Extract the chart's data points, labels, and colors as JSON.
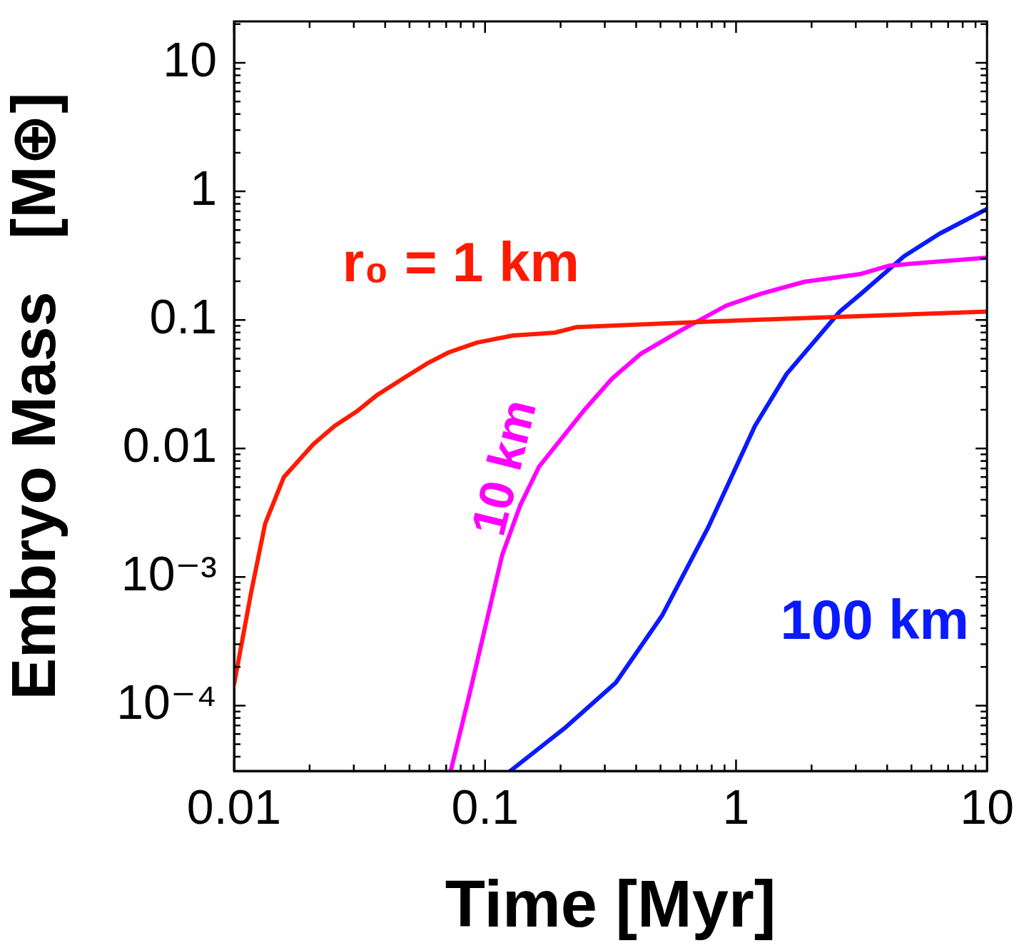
{
  "chart_data": {
    "type": "line",
    "xlabel": "Time [Myr]",
    "ylabel": "Embryo Mass   [M⊕]",
    "log": "xy",
    "legend": false,
    "xlim": [
      0.01,
      10
    ],
    "ylim": [
      3.1e-05,
      21
    ],
    "xticks": [
      {
        "value": 0.01,
        "label": "0.01"
      },
      {
        "value": 0.02,
        "label": null
      },
      {
        "value": 0.03,
        "label": null
      },
      {
        "value": 0.04,
        "label": null
      },
      {
        "value": 0.05,
        "label": null
      },
      {
        "value": 0.06,
        "label": null
      },
      {
        "value": 0.07,
        "label": null
      },
      {
        "value": 0.08,
        "label": null
      },
      {
        "value": 0.09,
        "label": null
      },
      {
        "value": 0.1,
        "label": "0.1"
      },
      {
        "value": 0.2,
        "label": null
      },
      {
        "value": 0.3,
        "label": null
      },
      {
        "value": 0.4,
        "label": null
      },
      {
        "value": 0.5,
        "label": null
      },
      {
        "value": 0.6,
        "label": null
      },
      {
        "value": 0.7,
        "label": null
      },
      {
        "value": 0.8,
        "label": null
      },
      {
        "value": 0.9,
        "label": null
      },
      {
        "value": 1,
        "label": "1"
      },
      {
        "value": 2,
        "label": null
      },
      {
        "value": 3,
        "label": null
      },
      {
        "value": 4,
        "label": null
      },
      {
        "value": 5,
        "label": null
      },
      {
        "value": 6,
        "label": null
      },
      {
        "value": 7,
        "label": null
      },
      {
        "value": 8,
        "label": null
      },
      {
        "value": 9,
        "label": null
      },
      {
        "value": 10,
        "label": "10"
      }
    ],
    "yticks": [
      {
        "value": 4e-05,
        "label": null
      },
      {
        "value": 5e-05,
        "label": null
      },
      {
        "value": 6e-05,
        "label": null
      },
      {
        "value": 7e-05,
        "label": null
      },
      {
        "value": 8e-05,
        "label": null
      },
      {
        "value": 9e-05,
        "label": null
      },
      {
        "value": 0.0001,
        "label": "10⁻⁴"
      },
      {
        "value": 0.0002,
        "label": null
      },
      {
        "value": 0.0003,
        "label": null
      },
      {
        "value": 0.0004,
        "label": null
      },
      {
        "value": 0.0005,
        "label": null
      },
      {
        "value": 0.0006,
        "label": null
      },
      {
        "value": 0.0007,
        "label": null
      },
      {
        "value": 0.0008,
        "label": null
      },
      {
        "value": 0.0009,
        "label": null
      },
      {
        "value": 0.001,
        "label": "10⁻³"
      },
      {
        "value": 0.002,
        "label": null
      },
      {
        "value": 0.003,
        "label": null
      },
      {
        "value": 0.004,
        "label": null
      },
      {
        "value": 0.005,
        "label": null
      },
      {
        "value": 0.006,
        "label": null
      },
      {
        "value": 0.007,
        "label": null
      },
      {
        "value": 0.008,
        "label": null
      },
      {
        "value": 0.009,
        "label": null
      },
      {
        "value": 0.01,
        "label": "0.01"
      },
      {
        "value": 0.02,
        "label": null
      },
      {
        "value": 0.03,
        "label": null
      },
      {
        "value": 0.04,
        "label": null
      },
      {
        "value": 0.05,
        "label": null
      },
      {
        "value": 0.06,
        "label": null
      },
      {
        "value": 0.07,
        "label": null
      },
      {
        "value": 0.08,
        "label": null
      },
      {
        "value": 0.09,
        "label": null
      },
      {
        "value": 0.1,
        "label": "0.1"
      },
      {
        "value": 0.2,
        "label": null
      },
      {
        "value": 0.3,
        "label": null
      },
      {
        "value": 0.4,
        "label": null
      },
      {
        "value": 0.5,
        "label": null
      },
      {
        "value": 0.6,
        "label": null
      },
      {
        "value": 0.7,
        "label": null
      },
      {
        "value": 0.8,
        "label": null
      },
      {
        "value": 0.9,
        "label": null
      },
      {
        "value": 1,
        "label": "1"
      },
      {
        "value": 2,
        "label": null
      },
      {
        "value": 3,
        "label": null
      },
      {
        "value": 4,
        "label": null
      },
      {
        "value": 5,
        "label": null
      },
      {
        "value": 6,
        "label": null
      },
      {
        "value": 7,
        "label": null
      },
      {
        "value": 8,
        "label": null
      },
      {
        "value": 9,
        "label": null
      },
      {
        "value": 10,
        "label": "10"
      },
      {
        "value": 20,
        "label": null
      }
    ],
    "series": [
      {
        "name": "r₀ = 1 km",
        "color": "#ff1a00",
        "x": [
          0.01,
          0.0117,
          0.0133,
          0.0158,
          0.0207,
          0.0252,
          0.0307,
          0.0373,
          0.0485,
          0.059,
          0.0718,
          0.093,
          0.129,
          0.19,
          0.232,
          1,
          10
        ],
        "values": [
          0.000146,
          0.00076,
          0.0026,
          0.006,
          0.0108,
          0.015,
          0.0193,
          0.0262,
          0.0363,
          0.046,
          0.056,
          0.0667,
          0.0757,
          0.0796,
          0.088,
          0.0989,
          0.116
        ]
      },
      {
        "name": "10 km",
        "color": "#ff00ff",
        "x": [
          0.073,
          0.087,
          0.117,
          0.138,
          0.164,
          0.248,
          0.321,
          0.417,
          0.617,
          0.912,
          1.26,
          1.87,
          3.15,
          4.1,
          10
        ],
        "values": [
          3.1e-05,
          0.000126,
          0.00148,
          0.0036,
          0.0072,
          0.0198,
          0.035,
          0.0545,
          0.085,
          0.129,
          0.16,
          0.198,
          0.228,
          0.265,
          0.305
        ]
      },
      {
        "name": "100 km",
        "color": "#0a1aff",
        "x": [
          0.126,
          0.21,
          0.332,
          0.507,
          0.776,
          1.19,
          1.59,
          2.59,
          3.15,
          4.67,
          6.46,
          10
        ],
        "values": [
          3.1e-05,
          6.8e-05,
          0.000151,
          0.0005,
          0.00245,
          0.015,
          0.038,
          0.116,
          0.16,
          0.313,
          0.468,
          0.73
        ]
      }
    ]
  }
}
